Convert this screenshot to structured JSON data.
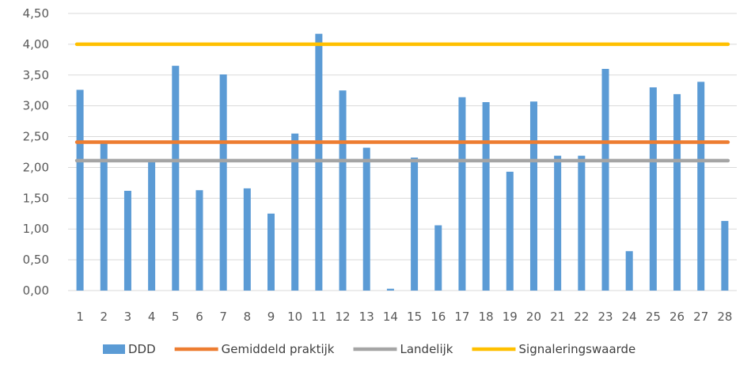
{
  "chart_data": {
    "type": "bar",
    "categories": [
      "1",
      "2",
      "3",
      "4",
      "5",
      "6",
      "7",
      "8",
      "9",
      "10",
      "11",
      "12",
      "13",
      "14",
      "15",
      "16",
      "17",
      "18",
      "19",
      "20",
      "21",
      "22",
      "23",
      "24",
      "25",
      "26",
      "27",
      "28"
    ],
    "series": [
      {
        "name": "DDD",
        "type": "bar",
        "color": "#5b9bd5",
        "values": [
          3.26,
          2.39,
          1.62,
          2.09,
          3.65,
          1.63,
          3.51,
          1.66,
          1.25,
          2.55,
          4.17,
          3.25,
          2.32,
          0.03,
          2.16,
          1.06,
          3.14,
          3.06,
          1.93,
          3.07,
          2.19,
          2.19,
          3.6,
          0.64,
          3.3,
          3.19,
          3.39,
          1.13
        ]
      },
      {
        "name": "Gemiddeld praktijk",
        "type": "line",
        "color": "#ed7d31",
        "value": 2.41
      },
      {
        "name": "Landelijk",
        "type": "line",
        "color": "#a5a5a5",
        "value": 2.11
      },
      {
        "name": "Signaleringswaarde",
        "type": "line",
        "color": "#ffc000",
        "value": 4.0
      }
    ],
    "ylim": [
      0,
      4.5
    ],
    "yticks": [
      "0,00",
      "0,50",
      "1,00",
      "1,50",
      "2,00",
      "2,50",
      "3,00",
      "3,50",
      "4,00",
      "4,50"
    ],
    "grid": true,
    "legend_position": "bottom"
  }
}
